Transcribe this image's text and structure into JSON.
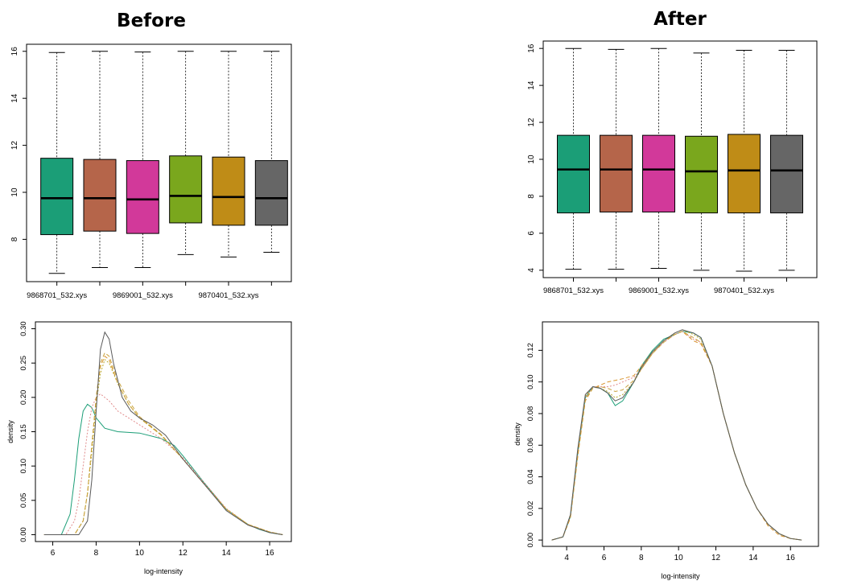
{
  "panels": {
    "before_title": "Before",
    "after_title": "After"
  },
  "box_colors": [
    "#1b9e77",
    "#b5654a",
    "#d2399a",
    "#7aa71d",
    "#bf8c17",
    "#666666"
  ],
  "density_colors": [
    "#1b9e77",
    "#e08a8a",
    "#d9952e",
    "#b7a82a",
    "#c9a23e",
    "#5a5a5a"
  ],
  "chart_data": [
    {
      "type": "box",
      "panel": "before",
      "categories": [
        "9868701_532.xys",
        "",
        "9869001_532.xys",
        "",
        "9870401_532.xys",
        ""
      ],
      "boxes": [
        {
          "min": 6.55,
          "q1": 8.2,
          "median": 9.75,
          "q3": 11.45,
          "max": 15.95
        },
        {
          "min": 6.8,
          "q1": 8.35,
          "median": 9.75,
          "q3": 11.4,
          "max": 16.0
        },
        {
          "min": 6.8,
          "q1": 8.25,
          "median": 9.7,
          "q3": 11.35,
          "max": 15.97
        },
        {
          "min": 7.35,
          "q1": 8.7,
          "median": 9.85,
          "q3": 11.55,
          "max": 16.0
        },
        {
          "min": 7.25,
          "q1": 8.6,
          "median": 9.8,
          "q3": 11.5,
          "max": 16.0
        },
        {
          "min": 7.45,
          "q1": 8.6,
          "median": 9.75,
          "q3": 11.35,
          "max": 16.0
        }
      ],
      "y_ticks": [
        8,
        10,
        12,
        14,
        16
      ],
      "ylim": [
        6.2,
        16.3
      ]
    },
    {
      "type": "box",
      "panel": "after",
      "categories": [
        "9868701_532.xys",
        "",
        "9869001_532.xys",
        "",
        "9870401_532.xys",
        ""
      ],
      "boxes": [
        {
          "min": 4.05,
          "q1": 7.1,
          "median": 9.45,
          "q3": 11.3,
          "max": 16.0
        },
        {
          "min": 4.05,
          "q1": 7.15,
          "median": 9.45,
          "q3": 11.3,
          "max": 15.95
        },
        {
          "min": 4.1,
          "q1": 7.15,
          "median": 9.45,
          "q3": 11.3,
          "max": 16.0
        },
        {
          "min": 4.0,
          "q1": 7.1,
          "median": 9.35,
          "q3": 11.25,
          "max": 15.75
        },
        {
          "min": 3.95,
          "q1": 7.1,
          "median": 9.4,
          "q3": 11.35,
          "max": 15.9
        },
        {
          "min": 4.0,
          "q1": 7.1,
          "median": 9.4,
          "q3": 11.3,
          "max": 15.9
        }
      ],
      "y_ticks": [
        4,
        6,
        8,
        10,
        12,
        14,
        16
      ],
      "ylim": [
        3.6,
        16.4
      ]
    },
    {
      "type": "line",
      "panel": "before",
      "xlabel": "log-intensity",
      "ylabel": "density",
      "x_ticks": [
        6,
        8,
        10,
        12,
        14,
        16
      ],
      "y_ticks": [
        0.0,
        0.05,
        0.1,
        0.15,
        0.2,
        0.25,
        0.3
      ],
      "y_tick_labels": [
        "0.00",
        "0.05",
        "0.10",
        "0.15",
        "0.20",
        "0.25",
        "0.30"
      ],
      "xlim": [
        5.2,
        17.0
      ],
      "ylim": [
        -0.01,
        0.31
      ],
      "series": [
        {
          "x": [
            5.6,
            6.4,
            6.8,
            7.0,
            7.2,
            7.4,
            7.6,
            7.8,
            8.0,
            8.4,
            9.0,
            10.0,
            11.0,
            11.6,
            12.0,
            13.0,
            14.0,
            15.0,
            15.5,
            16.0,
            16.6
          ],
          "y": [
            0.0,
            0.0,
            0.03,
            0.08,
            0.14,
            0.18,
            0.19,
            0.185,
            0.17,
            0.155,
            0.15,
            0.148,
            0.14,
            0.13,
            0.115,
            0.075,
            0.037,
            0.015,
            0.008,
            0.003,
            0.0
          ]
        },
        {
          "x": [
            5.6,
            6.6,
            7.0,
            7.2,
            7.4,
            7.6,
            7.8,
            8.0,
            8.2,
            8.6,
            9.0,
            10.0,
            11.0,
            12.0,
            13.0,
            14.0,
            15.0,
            16.0,
            16.6
          ],
          "y": [
            0.0,
            0.0,
            0.02,
            0.05,
            0.1,
            0.15,
            0.185,
            0.2,
            0.205,
            0.195,
            0.18,
            0.16,
            0.14,
            0.112,
            0.075,
            0.038,
            0.015,
            0.004,
            0.0
          ]
        },
        {
          "x": [
            5.6,
            7.0,
            7.4,
            7.6,
            7.8,
            8.0,
            8.2,
            8.4,
            8.6,
            9.0,
            9.5,
            10.0,
            11.0,
            12.0,
            13.0,
            14.0,
            15.0,
            16.0,
            16.6
          ],
          "y": [
            0.0,
            0.0,
            0.02,
            0.06,
            0.13,
            0.2,
            0.245,
            0.26,
            0.255,
            0.22,
            0.19,
            0.17,
            0.145,
            0.11,
            0.073,
            0.037,
            0.015,
            0.004,
            0.0
          ]
        },
        {
          "x": [
            5.6,
            7.0,
            7.4,
            7.6,
            7.8,
            8.0,
            8.2,
            8.4,
            8.6,
            9.0,
            9.5,
            10.0,
            11.0,
            12.0,
            13.0,
            14.0,
            15.0,
            16.0,
            16.6
          ],
          "y": [
            0.0,
            0.0,
            0.02,
            0.06,
            0.12,
            0.19,
            0.235,
            0.255,
            0.25,
            0.22,
            0.19,
            0.17,
            0.145,
            0.11,
            0.073,
            0.037,
            0.015,
            0.004,
            0.0
          ]
        },
        {
          "x": [
            5.6,
            7.0,
            7.4,
            7.6,
            7.8,
            8.0,
            8.2,
            8.4,
            8.6,
            9.0,
            9.5,
            10.0,
            11.0,
            12.0,
            13.0,
            14.0,
            15.0,
            16.0,
            16.6
          ],
          "y": [
            0.0,
            0.0,
            0.02,
            0.06,
            0.13,
            0.2,
            0.25,
            0.265,
            0.26,
            0.225,
            0.195,
            0.172,
            0.146,
            0.11,
            0.073,
            0.037,
            0.015,
            0.004,
            0.0
          ]
        },
        {
          "x": [
            5.6,
            7.2,
            7.6,
            7.8,
            8.0,
            8.2,
            8.4,
            8.6,
            8.8,
            9.2,
            9.6,
            10.0,
            10.6,
            11.2,
            12.0,
            13.0,
            14.0,
            15.0,
            16.0,
            16.6
          ],
          "y": [
            0.0,
            0.0,
            0.02,
            0.08,
            0.18,
            0.27,
            0.295,
            0.285,
            0.25,
            0.2,
            0.18,
            0.17,
            0.16,
            0.145,
            0.11,
            0.073,
            0.035,
            0.014,
            0.003,
            0.0
          ]
        }
      ]
    },
    {
      "type": "line",
      "panel": "after",
      "xlabel": "log-intensity",
      "ylabel": "density",
      "x_ticks": [
        4,
        6,
        8,
        10,
        12,
        14,
        16
      ],
      "y_ticks": [
        0.0,
        0.02,
        0.04,
        0.06,
        0.08,
        0.1,
        0.12
      ],
      "y_tick_labels": [
        "0.00",
        "0.02",
        "0.04",
        "0.06",
        "0.08",
        "0.10",
        "0.12"
      ],
      "xlim": [
        2.7,
        17.5
      ],
      "ylim": [
        -0.004,
        0.138
      ],
      "series": [
        {
          "x": [
            3.2,
            3.8,
            4.2,
            4.6,
            5.0,
            5.4,
            5.8,
            6.2,
            6.6,
            7.0,
            7.6,
            8.0,
            8.6,
            9.2,
            9.8,
            10.2,
            10.8,
            11.2,
            11.8,
            12.4,
            13.0,
            13.6,
            14.2,
            14.8,
            15.4,
            16.0,
            16.6
          ],
          "y": [
            0.0,
            0.002,
            0.015,
            0.055,
            0.09,
            0.097,
            0.096,
            0.093,
            0.085,
            0.088,
            0.1,
            0.11,
            0.12,
            0.127,
            0.13,
            0.132,
            0.131,
            0.128,
            0.11,
            0.08,
            0.055,
            0.035,
            0.02,
            0.01,
            0.004,
            0.001,
            0.0
          ]
        },
        {
          "x": [
            3.2,
            3.8,
            4.2,
            4.6,
            5.0,
            5.4,
            5.8,
            6.2,
            6.6,
            7.0,
            7.6,
            8.0,
            8.6,
            9.2,
            9.8,
            10.2,
            10.8,
            11.2,
            11.8,
            12.4,
            13.0,
            13.6,
            14.2,
            14.8,
            15.4,
            16.0,
            16.6
          ],
          "y": [
            0.0,
            0.002,
            0.015,
            0.055,
            0.09,
            0.097,
            0.097,
            0.097,
            0.098,
            0.1,
            0.103,
            0.108,
            0.118,
            0.125,
            0.13,
            0.132,
            0.127,
            0.125,
            0.11,
            0.08,
            0.055,
            0.035,
            0.02,
            0.01,
            0.004,
            0.001,
            0.0
          ]
        },
        {
          "x": [
            3.2,
            3.8,
            4.2,
            4.6,
            5.0,
            5.4,
            5.8,
            6.2,
            6.6,
            7.0,
            7.6,
            8.0,
            8.6,
            9.2,
            9.8,
            10.2,
            10.8,
            11.2,
            11.8,
            12.4,
            13.0,
            13.6,
            14.2,
            14.8,
            15.4,
            16.0,
            16.6
          ],
          "y": [
            0.0,
            0.002,
            0.014,
            0.053,
            0.088,
            0.096,
            0.098,
            0.1,
            0.101,
            0.102,
            0.104,
            0.11,
            0.119,
            0.126,
            0.13,
            0.132,
            0.126,
            0.124,
            0.11,
            0.08,
            0.055,
            0.035,
            0.02,
            0.009,
            0.003,
            0.001,
            0.0
          ]
        },
        {
          "x": [
            3.2,
            3.8,
            4.2,
            4.6,
            5.0,
            5.4,
            5.8,
            6.2,
            6.6,
            7.0,
            7.6,
            8.0,
            8.6,
            9.2,
            9.8,
            10.2,
            10.8,
            11.2,
            11.8,
            12.4,
            13.0,
            13.6,
            14.2,
            14.8,
            15.4,
            16.0,
            16.6
          ],
          "y": [
            0.0,
            0.002,
            0.016,
            0.057,
            0.091,
            0.097,
            0.096,
            0.094,
            0.09,
            0.092,
            0.1,
            0.108,
            0.118,
            0.126,
            0.131,
            0.133,
            0.13,
            0.127,
            0.11,
            0.08,
            0.055,
            0.035,
            0.02,
            0.01,
            0.004,
            0.001,
            0.0
          ]
        },
        {
          "x": [
            3.2,
            3.8,
            4.2,
            4.6,
            5.0,
            5.4,
            5.8,
            6.2,
            6.6,
            7.0,
            7.6,
            8.0,
            8.6,
            9.2,
            9.8,
            10.2,
            10.8,
            11.2,
            11.8,
            12.4,
            13.0,
            13.6,
            14.2,
            14.8,
            15.4,
            16.0,
            16.6
          ],
          "y": [
            0.0,
            0.002,
            0.015,
            0.055,
            0.089,
            0.096,
            0.097,
            0.096,
            0.094,
            0.095,
            0.101,
            0.108,
            0.118,
            0.125,
            0.13,
            0.132,
            0.128,
            0.125,
            0.11,
            0.08,
            0.055,
            0.035,
            0.02,
            0.01,
            0.004,
            0.001,
            0.0
          ]
        },
        {
          "x": [
            3.2,
            3.8,
            4.2,
            4.6,
            5.0,
            5.4,
            5.8,
            6.2,
            6.6,
            7.0,
            7.6,
            8.0,
            8.6,
            9.2,
            9.8,
            10.2,
            10.8,
            11.2,
            11.8,
            12.4,
            13.0,
            13.6,
            14.2,
            14.8,
            15.4,
            16.0,
            16.6
          ],
          "y": [
            0.0,
            0.002,
            0.016,
            0.058,
            0.092,
            0.097,
            0.096,
            0.093,
            0.088,
            0.09,
            0.1,
            0.109,
            0.119,
            0.126,
            0.131,
            0.133,
            0.131,
            0.128,
            0.11,
            0.08,
            0.055,
            0.035,
            0.02,
            0.01,
            0.004,
            0.001,
            0.0
          ]
        }
      ]
    }
  ]
}
